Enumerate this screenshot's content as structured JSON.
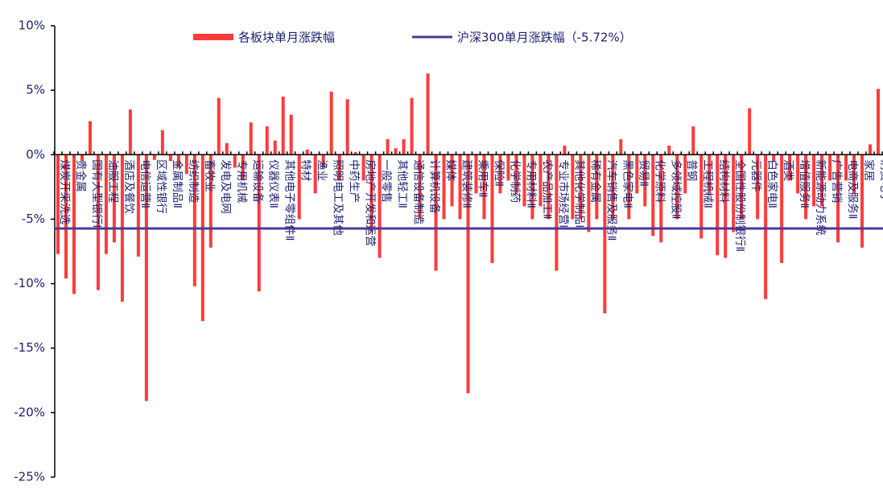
{
  "chart_data": {
    "type": "bar",
    "yticks": [
      {
        "value": 10,
        "label": "10%"
      },
      {
        "value": 5,
        "label": "5%"
      },
      {
        "value": 0,
        "label": "0%"
      },
      {
        "value": -5,
        "label": "-5%"
      },
      {
        "value": -10,
        "label": "-10%"
      },
      {
        "value": -15,
        "label": "-15%"
      },
      {
        "value": -20,
        "label": "-20%"
      },
      {
        "value": -25,
        "label": "-25%"
      }
    ],
    "ylim": [
      -25,
      10
    ],
    "categories": [
      "煤炭开采洗选",
      null,
      "贵金属",
      null,
      "国有大型银行Ⅱ",
      null,
      "油服工程",
      null,
      "酒店及餐饮",
      null,
      "电信运营Ⅱ",
      null,
      "区域性银行",
      null,
      "金属制品Ⅱ",
      null,
      "纺织制造",
      null,
      "畜牧业",
      null,
      "发电及电网",
      null,
      "专用机械",
      null,
      "运输设备",
      null,
      "仪器仪表Ⅱ",
      null,
      "其他电子零组件Ⅱ",
      null,
      "特材",
      null,
      "渔业",
      null,
      "照明电工及其他",
      null,
      "中药生产",
      null,
      "房地产开发和运营",
      null,
      "一般零售",
      null,
      "其他轻工Ⅱ",
      null,
      "通信设备制造",
      null,
      "计算机设备",
      null,
      "媒体",
      null,
      "建筑装修Ⅱ",
      null,
      "乘用车Ⅱ",
      null,
      "保险Ⅱ",
      null,
      "化学制药",
      null,
      "专用材料Ⅱ",
      null,
      "农产品加工Ⅱ",
      null,
      "专业市场经营Ⅱ",
      null,
      "其他化学制品Ⅱ",
      null,
      "稀有金属",
      null,
      "汽车销售及服务Ⅱ",
      null,
      "黑色家电Ⅱ",
      null,
      "贸易Ⅱ",
      null,
      "化学原料",
      null,
      "多领域控股Ⅱ",
      null,
      "普钢",
      null,
      "工程机械Ⅱ",
      null,
      "结构材料",
      null,
      "全国性股份制银行Ⅱ",
      null,
      "元器件",
      null,
      "白色家电Ⅱ",
      null,
      "酒类",
      null,
      "增值服务Ⅱ",
      null,
      "新能源动力系统",
      null,
      "广告营销",
      null,
      "电商及服务Ⅱ",
      null,
      "家居",
      null,
      "消费电子"
    ],
    "series": [
      {
        "name": "各板块单月涨跌幅",
        "color": "#ff3b3b",
        "values": [
          -7.7,
          -9.6,
          -10.8,
          -0.5,
          2.6,
          -10.5,
          -7.7,
          -6.8,
          -11.4,
          3.5,
          -7.9,
          -19.1,
          -0.4,
          1.9,
          -0.5,
          -1,
          -1.5,
          -10.2,
          -12.9,
          -7.2,
          4.4,
          0.9,
          -1,
          -2,
          2.5,
          -10.6,
          2.2,
          1.1,
          4.5,
          3.1,
          -5,
          0.4,
          -3,
          -1,
          4.9,
          -2,
          4.3,
          0.2,
          -2,
          -6,
          -8,
          1.2,
          0.5,
          1.2,
          4.4,
          -5,
          6.3,
          -9,
          -5,
          -4,
          -5,
          -18.5,
          -3,
          -5,
          -8.4,
          -3,
          -2,
          -3,
          -4,
          -5,
          -4,
          -5,
          -9,
          0.7,
          -5,
          -5,
          -6,
          -5,
          -12.3,
          -5,
          1.2,
          -5,
          -3,
          -4,
          -6.3,
          -6.8,
          0.7,
          -5,
          -3,
          2.2,
          -6.5,
          -3,
          -7.8,
          -8,
          -6,
          -5,
          3.6,
          -5,
          -11.2,
          -0.5,
          -8.4,
          -2,
          -3,
          -5,
          -4,
          -4,
          -2,
          -6.8,
          -2,
          -3,
          -7.2,
          0.8,
          5.1
        ]
      },
      {
        "name": "沪深300单月涨跌幅（-5.72%）",
        "type": "line",
        "color": "#4a3a9c",
        "value": -5.72
      }
    ]
  }
}
